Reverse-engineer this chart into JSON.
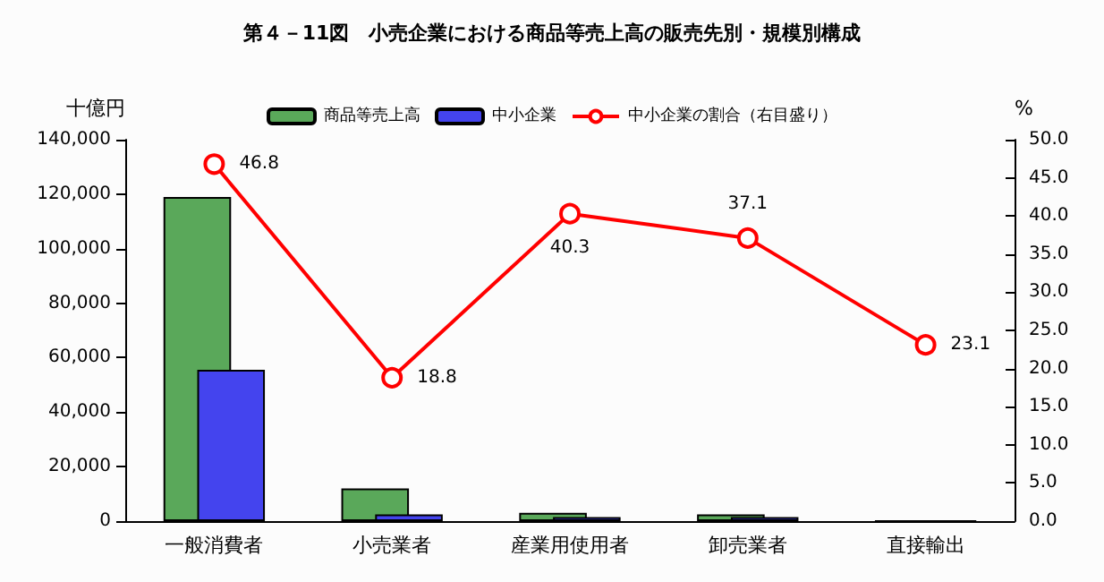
{
  "chart_data": {
    "type": "bar",
    "title": "第４－11図　小売企業における商品等売上高の販売先別・規模別構成",
    "ylabel": "十億円",
    "y2label": "%",
    "categories": [
      "一般消費者",
      "小売業者",
      "産業用使用者",
      "卸売業者",
      "直接輸出"
    ],
    "series": [
      {
        "name": "商品等売上高",
        "color": "#5aa85a",
        "values": [
          119000,
          12000,
          3000,
          2500,
          0
        ]
      },
      {
        "name": "中小企業",
        "color": "#4444ee",
        "values": [
          55500,
          2500,
          1500,
          1500,
          0
        ]
      },
      {
        "name": "中小企業の割合（右目盛り）",
        "type": "line",
        "axis": "y2",
        "color": "#ff0000",
        "values": [
          46.8,
          18.8,
          40.3,
          37.1,
          23.1
        ],
        "value_labels": [
          "46.8",
          "18.8",
          "40.3",
          "37.1",
          "23.1"
        ]
      }
    ],
    "ylim": [
      0,
      140000
    ],
    "yticks": [
      {
        "value": 0,
        "label": "0"
      },
      {
        "value": 20000,
        "label": "20,000"
      },
      {
        "value": 40000,
        "label": "40,000"
      },
      {
        "value": 60000,
        "label": "60,000"
      },
      {
        "value": 80000,
        "label": "80,000"
      },
      {
        "value": 100000,
        "label": "100,000"
      },
      {
        "value": 120000,
        "label": "120,000"
      },
      {
        "value": 140000,
        "label": "140,000"
      }
    ],
    "y2lim": [
      0,
      50
    ],
    "y2ticks": [
      {
        "value": 0,
        "label": "0.0"
      },
      {
        "value": 5,
        "label": "5.0"
      },
      {
        "value": 10,
        "label": "10.0"
      },
      {
        "value": 15,
        "label": "15.0"
      },
      {
        "value": 20,
        "label": "20.0"
      },
      {
        "value": 25,
        "label": "25.0"
      },
      {
        "value": 30,
        "label": "30.0"
      },
      {
        "value": 35,
        "label": "35.0"
      },
      {
        "value": 40,
        "label": "40.0"
      },
      {
        "value": 45,
        "label": "45.0"
      },
      {
        "value": 50,
        "label": "50.0"
      }
    ],
    "marker": "circle",
    "grid": false,
    "legend": "top"
  }
}
